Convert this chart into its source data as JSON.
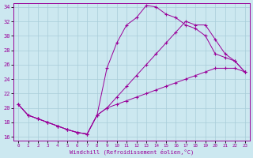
{
  "xlabel": "Windchill (Refroidissement éolien,°C)",
  "xlim": [
    -0.5,
    23.5
  ],
  "ylim": [
    15.5,
    34.5
  ],
  "xticks": [
    0,
    1,
    2,
    3,
    4,
    5,
    6,
    7,
    8,
    9,
    10,
    11,
    12,
    13,
    14,
    15,
    16,
    17,
    18,
    19,
    20,
    21,
    22,
    23
  ],
  "yticks": [
    16,
    18,
    20,
    22,
    24,
    26,
    28,
    30,
    32,
    34
  ],
  "bg_color": "#cce8f0",
  "line_color": "#990099",
  "grid_color": "#a8ccd8",
  "line1_x": [
    0,
    1,
    2,
    3,
    4,
    5,
    6,
    7,
    8,
    9,
    10,
    11,
    12,
    13,
    14,
    15,
    16,
    17,
    18,
    19,
    20,
    21,
    22,
    23
  ],
  "line1_y": [
    20.5,
    19.0,
    18.5,
    18.0,
    17.5,
    17.0,
    16.6,
    16.4,
    19.0,
    25.5,
    29.0,
    31.5,
    32.5,
    34.2,
    34.0,
    33.0,
    32.5,
    31.5,
    31.0,
    30.0,
    27.5,
    27.0,
    26.5,
    25.0
  ],
  "line2_x": [
    0,
    1,
    2,
    3,
    4,
    5,
    6,
    7,
    8,
    9,
    10,
    11,
    12,
    13,
    14,
    15,
    16,
    17,
    18,
    19,
    20,
    21,
    22,
    23
  ],
  "line2_y": [
    20.5,
    19.0,
    18.5,
    18.0,
    17.5,
    17.0,
    16.6,
    16.4,
    19.0,
    20.0,
    21.5,
    23.0,
    24.5,
    26.0,
    27.5,
    29.0,
    30.5,
    32.0,
    31.5,
    31.5,
    29.5,
    27.5,
    26.5,
    25.0
  ],
  "line3_x": [
    0,
    1,
    2,
    3,
    4,
    5,
    6,
    7,
    8,
    9,
    10,
    11,
    12,
    13,
    14,
    15,
    16,
    17,
    18,
    19,
    20,
    21,
    22,
    23
  ],
  "line3_y": [
    20.5,
    19.0,
    18.5,
    18.0,
    17.5,
    17.0,
    16.6,
    16.4,
    19.0,
    20.0,
    20.5,
    21.0,
    21.5,
    22.0,
    22.5,
    23.0,
    23.5,
    24.0,
    24.5,
    25.0,
    25.5,
    25.5,
    25.5,
    25.0
  ]
}
